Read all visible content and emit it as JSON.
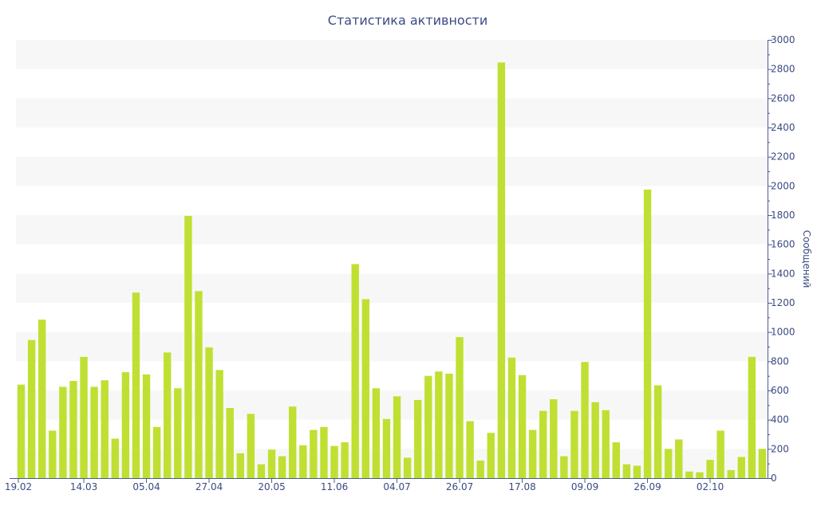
{
  "chart_data": {
    "type": "bar",
    "title": "Статистика активности",
    "ylabel": "Сообщений",
    "ylim": [
      0,
      3000
    ],
    "y_ticks": [
      0,
      200,
      400,
      600,
      800,
      1000,
      1200,
      1400,
      1600,
      1800,
      2000,
      2200,
      2400,
      2600,
      2800,
      3000
    ],
    "x_tick_labels": [
      {
        "index": 0,
        "label": "19.02"
      },
      {
        "index": 6,
        "label": "14.03"
      },
      {
        "index": 12,
        "label": "05.04"
      },
      {
        "index": 18,
        "label": "27.04"
      },
      {
        "index": 24,
        "label": "20.05"
      },
      {
        "index": 30,
        "label": "11.06"
      },
      {
        "index": 36,
        "label": "04.07"
      },
      {
        "index": 42,
        "label": "26.07"
      },
      {
        "index": 48,
        "label": "17.08"
      },
      {
        "index": 54,
        "label": "09.09"
      },
      {
        "index": 60,
        "label": "26.09"
      },
      {
        "index": 66,
        "label": "02.10"
      }
    ],
    "grid": "alternating horizontal bands",
    "y_axis_position": "right",
    "color": "#bfe032",
    "values": [
      640,
      945,
      1085,
      325,
      625,
      665,
      830,
      625,
      670,
      270,
      725,
      1270,
      710,
      350,
      860,
      615,
      1795,
      1280,
      895,
      740,
      480,
      170,
      440,
      95,
      195,
      150,
      490,
      225,
      330,
      350,
      220,
      245,
      1465,
      1225,
      615,
      405,
      560,
      140,
      535,
      700,
      730,
      715,
      965,
      390,
      120,
      310,
      2845,
      825,
      705,
      330,
      460,
      540,
      150,
      460,
      795,
      520,
      465,
      245,
      95,
      85,
      1975,
      635,
      200,
      265,
      45,
      40,
      125,
      325,
      55,
      145,
      830,
      200
    ]
  }
}
